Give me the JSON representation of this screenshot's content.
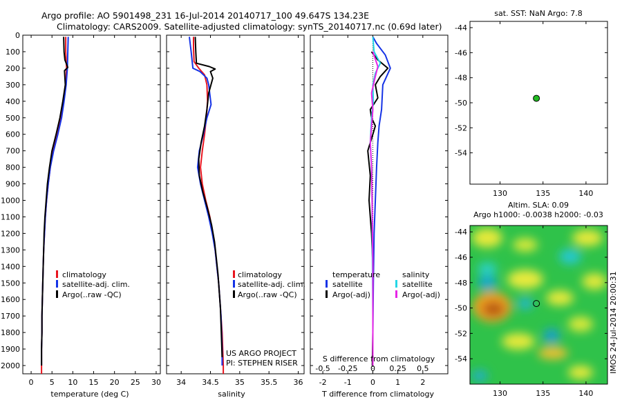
{
  "header": {
    "title_line1": "Argo profile: AO 5901498_231 16-Jul-2014 20140717_100 49.647S 134.23E",
    "title_line2": "Climatology: CARS2009. Satellite-adjusted climatology: synTS_20140717.nc (0.69d later)"
  },
  "credits": {
    "project": "US ARGO PROJECT",
    "pi": "PI: STEPHEN RISER",
    "side_stamp": "IMOS 24-Jul-2014 20:00:31"
  },
  "colors": {
    "climatology": "#e8141e",
    "satellite": "#1432e6",
    "argo": "#000000",
    "sal_satellite": "#25d7e6",
    "sal_argo": "#e625e6",
    "point_fill": "#22bb22"
  },
  "chart_data": [
    {
      "type": "line",
      "id": "temperature",
      "xlabel": "temperature (deg C)",
      "xlim": [
        -2,
        31
      ],
      "xticks": [
        0,
        5,
        10,
        15,
        20,
        25,
        30
      ],
      "ylim": [
        2050,
        0
      ],
      "yticks": [
        0,
        100,
        200,
        300,
        400,
        500,
        600,
        700,
        800,
        900,
        1000,
        1100,
        1200,
        1300,
        1400,
        1500,
        1600,
        1700,
        1800,
        1900,
        2000
      ],
      "legend": [
        "climatology",
        "satellite-adj. clim.",
        "Argo(..raw -QC)"
      ],
      "series": [
        {
          "name": "climatology",
          "color": "#e8141e",
          "points": [
            [
              8.3,
              10
            ],
            [
              8.3,
              100
            ],
            [
              8.5,
              200
            ],
            [
              8.3,
              300
            ],
            [
              7.8,
              400
            ],
            [
              7.2,
              500
            ],
            [
              6.3,
              600
            ],
            [
              5.3,
              700
            ],
            [
              4.6,
              800
            ],
            [
              4.1,
              900
            ],
            [
              3.7,
              1000
            ],
            [
              3.4,
              1100
            ],
            [
              3.2,
              1200
            ],
            [
              3.0,
              1300
            ],
            [
              2.9,
              1400
            ],
            [
              2.8,
              1500
            ],
            [
              2.7,
              1600
            ],
            [
              2.6,
              1700
            ],
            [
              2.6,
              1800
            ],
            [
              2.5,
              1900
            ],
            [
              2.5,
              2000
            ],
            [
              2.5,
              2050
            ]
          ]
        },
        {
          "name": "satellite-adj. clim.",
          "color": "#1432e6",
          "points": [
            [
              8.9,
              10
            ],
            [
              8.8,
              100
            ],
            [
              8.7,
              200
            ],
            [
              8.4,
              300
            ],
            [
              7.9,
              400
            ],
            [
              7.3,
              500
            ],
            [
              6.4,
              600
            ],
            [
              5.4,
              700
            ],
            [
              4.6,
              800
            ],
            [
              4.1,
              900
            ],
            [
              3.7,
              1000
            ],
            [
              3.4,
              1100
            ],
            [
              3.2,
              1200
            ],
            [
              3.0,
              1300
            ],
            [
              2.9,
              1400
            ],
            [
              2.8,
              1500
            ],
            [
              2.7,
              1600
            ],
            [
              2.6,
              1700
            ],
            [
              2.6,
              1800
            ],
            [
              2.5,
              1900
            ],
            [
              2.5,
              2000
            ]
          ]
        },
        {
          "name": "Argo(..raw -QC)",
          "color": "#000000",
          "points": [
            [
              7.8,
              10
            ],
            [
              7.9,
              100
            ],
            [
              8.1,
              150
            ],
            [
              8.8,
              195
            ],
            [
              8.0,
              215
            ],
            [
              8.2,
              300
            ],
            [
              7.6,
              400
            ],
            [
              6.9,
              500
            ],
            [
              6.0,
              600
            ],
            [
              5.0,
              700
            ],
            [
              4.4,
              800
            ],
            [
              3.9,
              900
            ],
            [
              3.6,
              1000
            ],
            [
              3.3,
              1100
            ],
            [
              3.1,
              1200
            ],
            [
              3.0,
              1300
            ],
            [
              2.9,
              1400
            ],
            [
              2.8,
              1500
            ],
            [
              2.7,
              1600
            ],
            [
              2.6,
              1700
            ],
            [
              2.6,
              1800
            ],
            [
              2.5,
              1900
            ],
            [
              2.5,
              2000
            ]
          ]
        }
      ]
    },
    {
      "type": "line",
      "id": "salinity",
      "xlabel": "salinity",
      "xlim": [
        33.75,
        36.1
      ],
      "xticks": [
        34,
        34.5,
        35,
        35.5,
        36
      ],
      "ylim": [
        2050,
        0
      ],
      "legend": [
        "climatology",
        "satellite-adj. clim.",
        "Argo(..raw -QC)"
      ],
      "series": [
        {
          "name": "climatology",
          "color": "#e8141e",
          "points": [
            [
              34.21,
              10
            ],
            [
              34.21,
              80
            ],
            [
              34.22,
              160
            ],
            [
              34.3,
              200
            ],
            [
              34.4,
              240
            ],
            [
              34.44,
              300
            ],
            [
              34.45,
              400
            ],
            [
              34.43,
              500
            ],
            [
              34.4,
              600
            ],
            [
              34.36,
              700
            ],
            [
              34.33,
              800
            ],
            [
              34.36,
              900
            ],
            [
              34.42,
              1000
            ],
            [
              34.49,
              1100
            ],
            [
              34.54,
              1200
            ],
            [
              34.58,
              1300
            ],
            [
              34.61,
              1400
            ],
            [
              34.64,
              1500
            ],
            [
              34.66,
              1600
            ],
            [
              34.68,
              1700
            ],
            [
              34.7,
              1800
            ],
            [
              34.71,
              1900
            ],
            [
              34.72,
              2000
            ],
            [
              34.72,
              2050
            ]
          ]
        },
        {
          "name": "satellite-adj. clim.",
          "color": "#1432e6",
          "points": [
            [
              34.14,
              10
            ],
            [
              34.17,
              100
            ],
            [
              34.2,
              200
            ],
            [
              34.32,
              220
            ],
            [
              34.44,
              260
            ],
            [
              34.47,
              300
            ],
            [
              34.51,
              420
            ],
            [
              34.44,
              500
            ],
            [
              34.38,
              600
            ],
            [
              34.31,
              700
            ],
            [
              34.28,
              800
            ],
            [
              34.33,
              900
            ],
            [
              34.4,
              1000
            ],
            [
              34.47,
              1100
            ],
            [
              34.53,
              1200
            ],
            [
              34.58,
              1300
            ],
            [
              34.61,
              1400
            ],
            [
              34.64,
              1500
            ],
            [
              34.66,
              1600
            ],
            [
              34.68,
              1700
            ],
            [
              34.69,
              1800
            ],
            [
              34.7,
              1900
            ],
            [
              34.7,
              2000
            ]
          ]
        },
        {
          "name": "Argo(..raw -QC)",
          "color": "#000000",
          "points": [
            [
              34.24,
              10
            ],
            [
              34.25,
              100
            ],
            [
              34.26,
              170
            ],
            [
              34.48,
              190
            ],
            [
              34.58,
              205
            ],
            [
              34.5,
              220
            ],
            [
              34.54,
              260
            ],
            [
              34.47,
              350
            ],
            [
              34.44,
              450
            ],
            [
              34.4,
              550
            ],
            [
              34.34,
              650
            ],
            [
              34.3,
              750
            ],
            [
              34.31,
              850
            ],
            [
              34.37,
              950
            ],
            [
              34.45,
              1050
            ],
            [
              34.52,
              1150
            ],
            [
              34.57,
              1250
            ],
            [
              34.6,
              1350
            ],
            [
              34.63,
              1450
            ],
            [
              34.65,
              1550
            ],
            [
              34.67,
              1650
            ],
            [
              34.68,
              1750
            ],
            [
              34.69,
              1850
            ],
            [
              34.7,
              1950
            ]
          ]
        }
      ]
    },
    {
      "type": "line",
      "id": "difference",
      "xlabel": "T difference from climatology",
      "xlabel_top": "S difference from climatology",
      "xlim": [
        -2.5,
        3
      ],
      "xticks": [
        -2,
        -1,
        0,
        1,
        2
      ],
      "xticks_top": [
        -0.5,
        -0.25,
        0,
        0.25,
        0.5
      ],
      "ylim": [
        2050,
        0
      ],
      "legend_headers": [
        "temperature",
        "salinity"
      ],
      "legend": [
        "satellite",
        "Argo(-adj)",
        "satellite",
        "Argo(-adj)"
      ],
      "series": [
        {
          "name": "satellite",
          "color": "#1432e6",
          "points": [
            [
              0.0,
              10
            ],
            [
              0.15,
              50
            ],
            [
              0.5,
              120
            ],
            [
              0.7,
              200
            ],
            [
              0.4,
              300
            ],
            [
              0.35,
              450
            ],
            [
              0.25,
              550
            ],
            [
              0.2,
              650
            ],
            [
              0.15,
              800
            ],
            [
              0.1,
              1000
            ],
            [
              0.05,
              1200
            ],
            [
              0.02,
              1500
            ],
            [
              0.0,
              1800
            ],
            [
              0.0,
              2000
            ]
          ]
        },
        {
          "name": "Argo(-adj)",
          "color": "#000000",
          "points": [
            [
              -0.05,
              100
            ],
            [
              0.2,
              150
            ],
            [
              0.6,
              200
            ],
            [
              0.3,
              250
            ],
            [
              0.1,
              300
            ],
            [
              0.2,
              380
            ],
            [
              -0.1,
              450
            ],
            [
              -0.05,
              500
            ],
            [
              0.1,
              550
            ],
            [
              0.0,
              600
            ],
            [
              -0.2,
              700
            ],
            [
              -0.1,
              850
            ],
            [
              -0.15,
              1000
            ],
            [
              -0.1,
              1100
            ],
            [
              -0.05,
              1200
            ],
            [
              0.0,
              1400
            ],
            [
              0.0,
              1800
            ],
            [
              -0.02,
              2000
            ]
          ]
        },
        {
          "name": "satellite",
          "color": "#25d7e6",
          "points": [
            [
              0.0,
              10
            ],
            [
              0.05,
              100
            ],
            [
              0.3,
              170
            ],
            [
              0.1,
              230
            ],
            [
              0.0,
              300
            ],
            [
              0.02,
              400
            ],
            [
              -0.05,
              500
            ],
            [
              -0.1,
              650
            ],
            [
              -0.05,
              800
            ],
            [
              -0.03,
              1000
            ],
            [
              -0.02,
              1300
            ],
            [
              0.0,
              1700
            ],
            [
              0.0,
              2000
            ]
          ]
        },
        {
          "name": "Argo(-adj)",
          "color": "#e625e6",
          "points": [
            [
              0.0,
              100
            ],
            [
              0.2,
              190
            ],
            [
              0.1,
              250
            ],
            [
              -0.05,
              350
            ],
            [
              0.0,
              450
            ],
            [
              -0.1,
              650
            ],
            [
              -0.05,
              800
            ],
            [
              -0.03,
              1000
            ],
            [
              0.0,
              1400
            ],
            [
              0.0,
              2000
            ]
          ]
        }
      ]
    },
    {
      "type": "scatter",
      "id": "sst_map",
      "title": "sat. SST: NaN Argo: 7.8",
      "xlim": [
        126.5,
        142.5
      ],
      "ylim": [
        -56.5,
        -43.5
      ],
      "xticks": [
        130,
        135,
        140
      ],
      "yticks": [
        -44,
        -46,
        -48,
        -50,
        -52,
        -54
      ],
      "points": [
        {
          "x": 134.23,
          "y": -49.647
        }
      ]
    },
    {
      "type": "heatmap",
      "id": "sla_map",
      "title_line1": "Altim. SLA: 0.09",
      "title_line2": "Argo h1000: -0.0038 h2000: -0.03",
      "xlim": [
        126.5,
        142.5
      ],
      "ylim": [
        -56,
        -43.5
      ],
      "xticks": [
        130,
        135,
        140
      ],
      "yticks": [
        -44,
        -46,
        -48,
        -50,
        -52,
        -54
      ],
      "points": [
        {
          "x": 134.23,
          "y": -49.647
        }
      ]
    }
  ]
}
